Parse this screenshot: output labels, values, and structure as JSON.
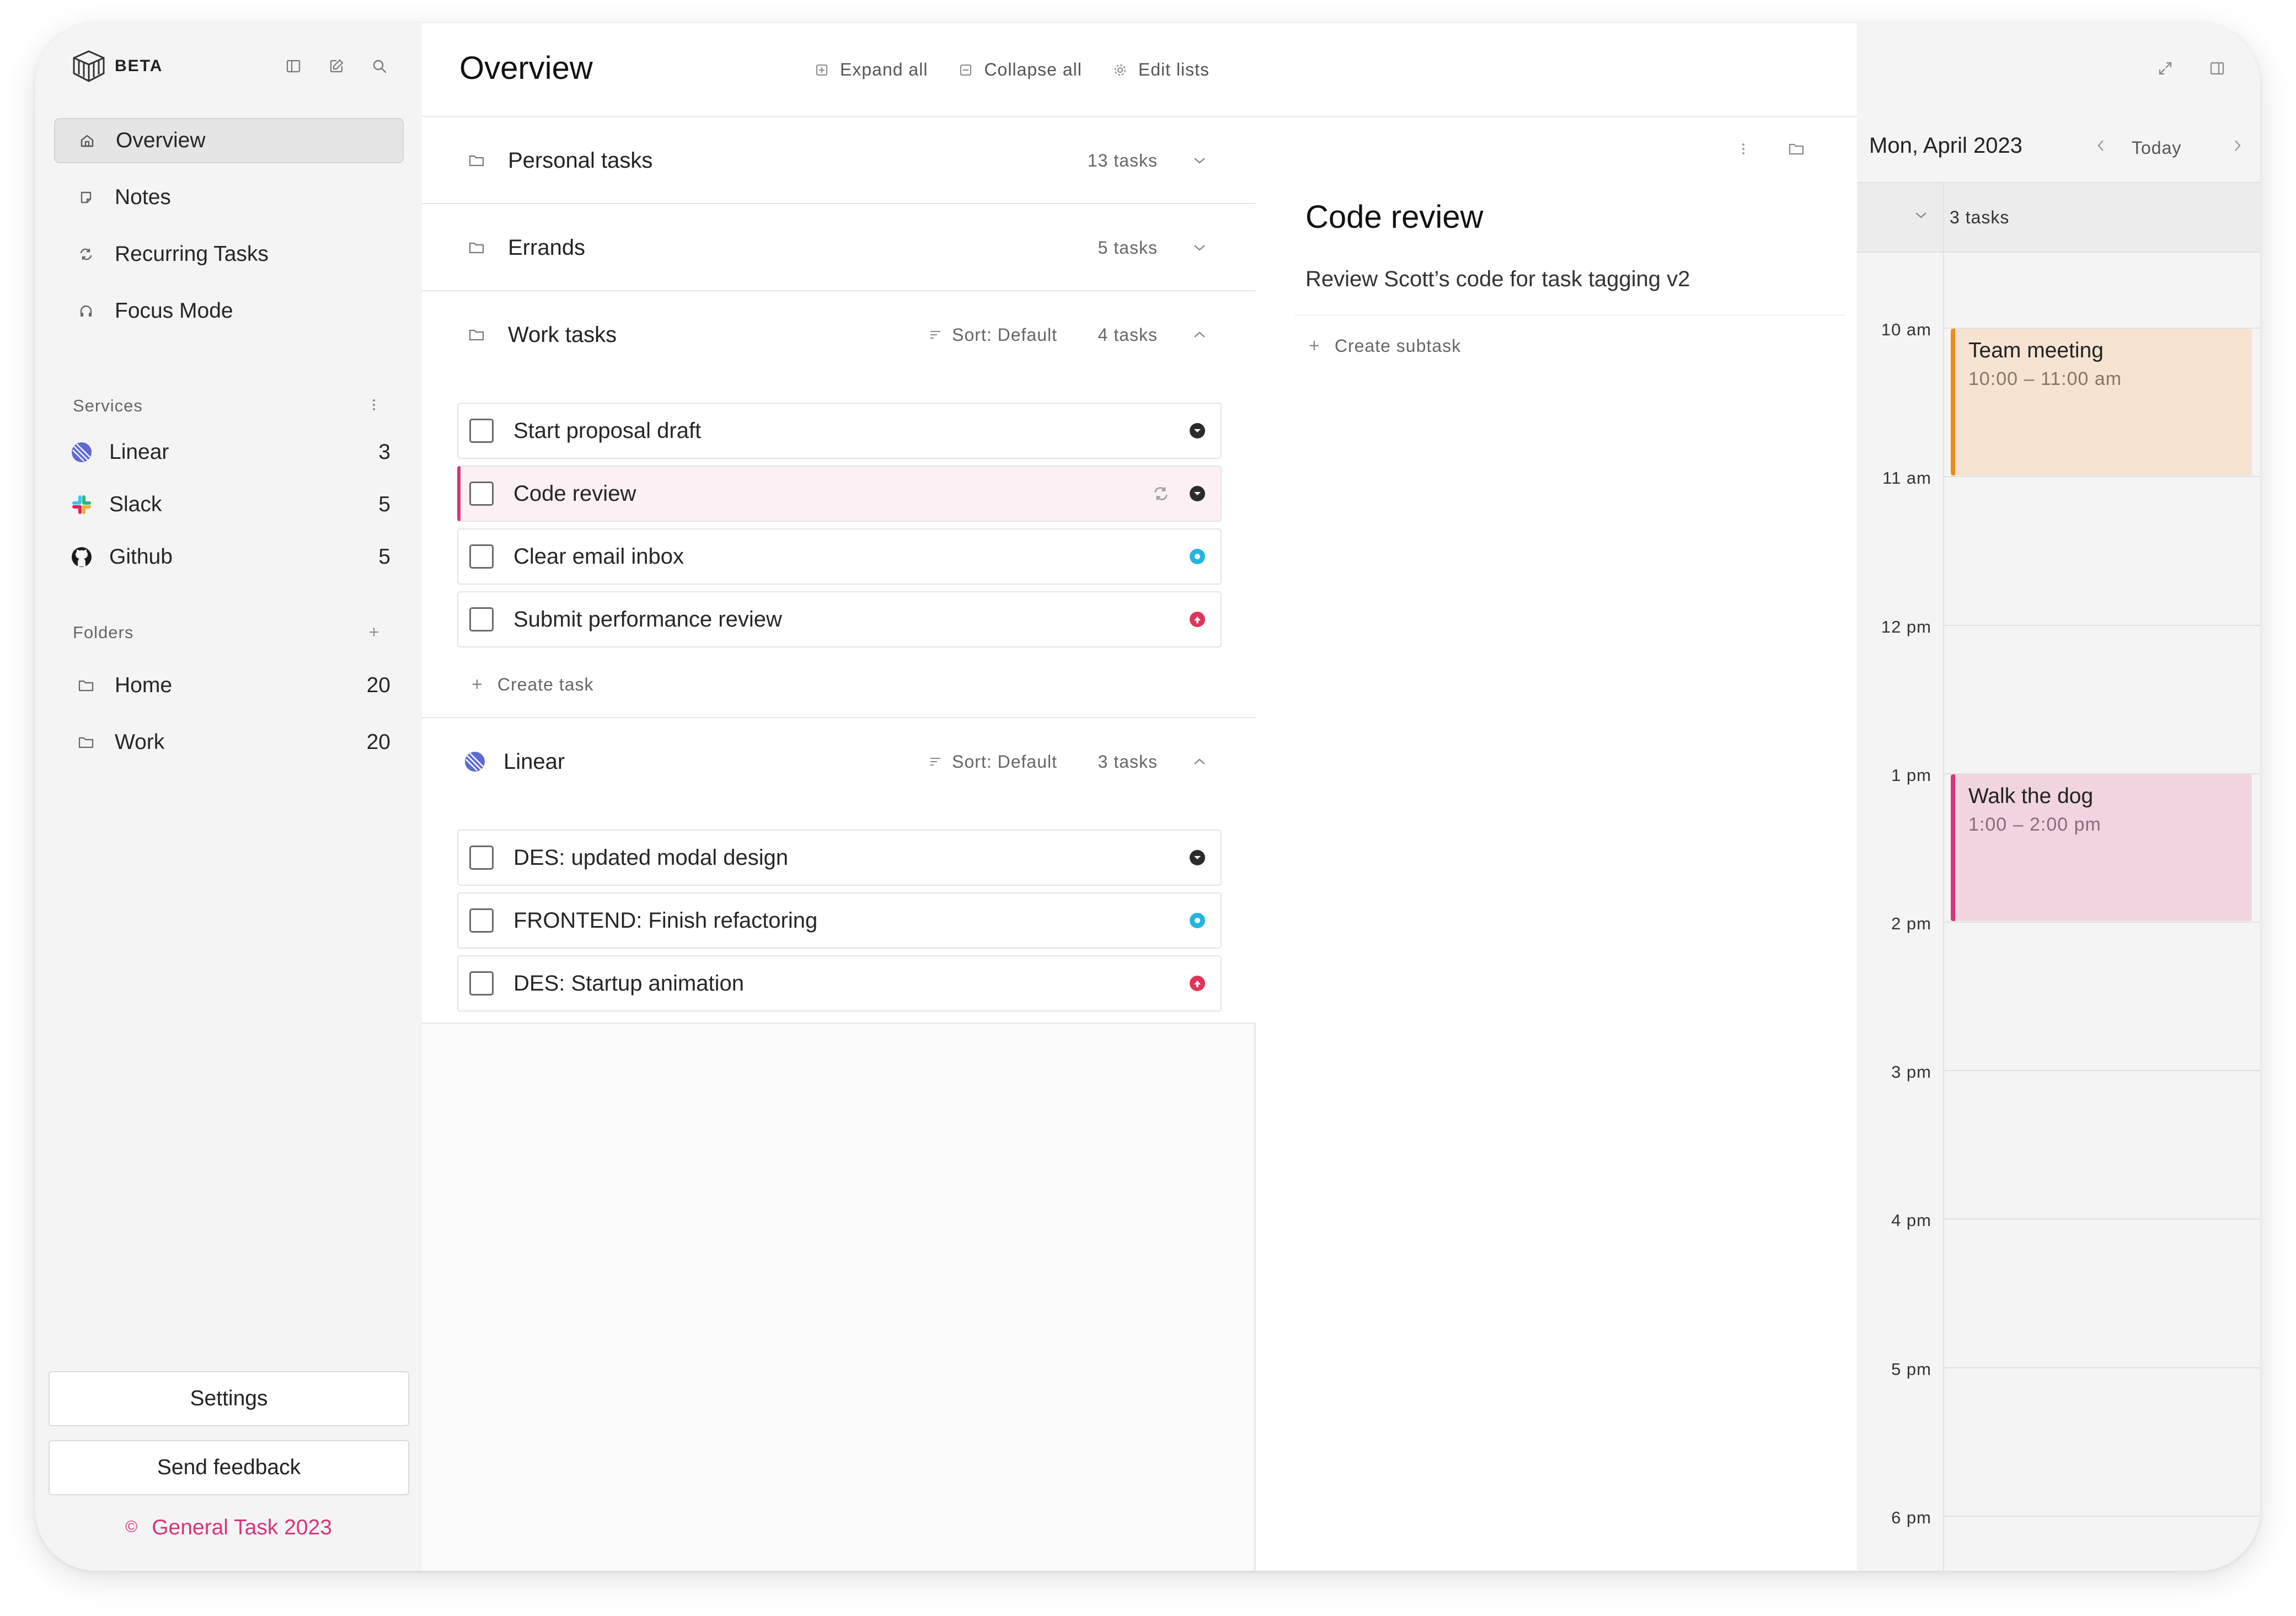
{
  "brand": {
    "badge": "BETA"
  },
  "sidebar": {
    "nav": [
      {
        "label": "Overview",
        "icon": "home-icon",
        "active": true
      },
      {
        "label": "Notes",
        "icon": "note-icon"
      },
      {
        "label": "Recurring Tasks",
        "icon": "repeat-icon"
      },
      {
        "label": "Focus Mode",
        "icon": "headphones-icon"
      }
    ],
    "services_heading": "Services",
    "services": [
      {
        "label": "Linear",
        "count": "3",
        "icon": "linear-icon"
      },
      {
        "label": "Slack",
        "count": "5",
        "icon": "slack-icon"
      },
      {
        "label": "Github",
        "count": "5",
        "icon": "github-icon"
      }
    ],
    "folders_heading": "Folders",
    "folders": [
      {
        "label": "Home",
        "count": "20",
        "icon": "folder-icon"
      },
      {
        "label": "Work",
        "count": "20",
        "icon": "folder-icon"
      }
    ],
    "settings_label": "Settings",
    "feedback_label": "Send feedback",
    "copyright_symbol": "©",
    "copyright_text": "General Task 2023"
  },
  "overview": {
    "title": "Overview",
    "actions": {
      "expand": "Expand all",
      "collapse": "Collapse all",
      "edit": "Edit lists"
    },
    "groups": [
      {
        "name": "Personal tasks",
        "count": "13 tasks"
      },
      {
        "name": "Errands",
        "count": "5 tasks"
      },
      {
        "name": "Work tasks",
        "sort": "Sort: Default",
        "count": "4 tasks",
        "tasks": [
          {
            "name": "Start proposal draft",
            "priority": "none"
          },
          {
            "name": "Code review",
            "priority": "none",
            "recurring": true,
            "selected": true
          },
          {
            "name": "Clear email inbox",
            "priority": "medium"
          },
          {
            "name": "Submit performance review",
            "priority": "high"
          }
        ],
        "create_label": "Create task"
      },
      {
        "name": "Linear",
        "sort": "Sort: Default",
        "count": "3 tasks",
        "tasks": [
          {
            "name": "DES: updated modal design",
            "priority": "none"
          },
          {
            "name": "FRONTEND: Finish refactoring",
            "priority": "medium"
          },
          {
            "name": "DES: Startup animation",
            "priority": "high"
          }
        ]
      }
    ]
  },
  "detail": {
    "title": "Code review",
    "description": "Review Scott’s code for task tagging v2",
    "create_subtask": "Create subtask"
  },
  "calendar": {
    "date": "Mon, April 2023",
    "today_label": "Today",
    "allday_count": "3 tasks",
    "hours": [
      "10 am",
      "11 am",
      "12 pm",
      "1 pm",
      "2 pm",
      "3 pm",
      "4 pm",
      "5 pm",
      "6 pm"
    ],
    "events": [
      {
        "title": "Team meeting",
        "time": "10:00 – 11:00 am",
        "color": "#f08a1a"
      },
      {
        "title": "Walk the dog",
        "time": "1:00 – 2:00 pm",
        "color": "#d6347b"
      }
    ]
  },
  "colors": {
    "accent": "#d6347b",
    "priority_none": "#2b2b2b",
    "priority_medium": "#23b5e0",
    "priority_high": "#e0345a"
  }
}
